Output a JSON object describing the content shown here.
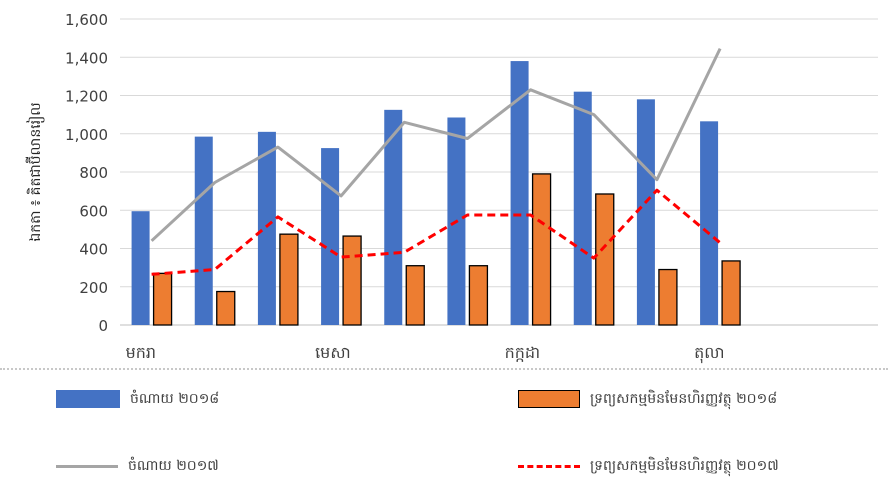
{
  "chart_data": {
    "type": "bar",
    "title": "",
    "xlabel": "",
    "ylabel": "ឯកតា ៖ គិតជាប៊ីលានរៀល",
    "ylim": [
      0,
      1600
    ],
    "y_ticks": [
      "0",
      "200",
      "400",
      "600",
      "800",
      "1,000",
      "1,200",
      "1,400",
      "1,600"
    ],
    "num_categories": 12,
    "x_tick_labels": [
      {
        "index": 0,
        "label": "មករា"
      },
      {
        "index": 3,
        "label": "មេសា"
      },
      {
        "index": 6,
        "label": "កក្កដា"
      },
      {
        "index": 9,
        "label": "តុលា"
      }
    ],
    "grid": true,
    "series": [
      {
        "name": "ចំណាយ ២០១៨",
        "kind": "bar",
        "color": "#4472c4",
        "values": [
          595,
          985,
          1010,
          925,
          1125,
          1085,
          1380,
          1220,
          1180,
          1065
        ]
      },
      {
        "name": "ទ្រព្យសកម្មមិនមែនហិរញ្ញវត្ថុ ២០១៨",
        "kind": "bar",
        "color": "#ed7d31",
        "values": [
          270,
          175,
          475,
          465,
          310,
          310,
          790,
          685,
          290,
          335
        ]
      },
      {
        "name": "ចំណាយ ២០១៧",
        "kind": "line",
        "color": "#a5a5a5",
        "values": [
          440,
          745,
          930,
          675,
          1060,
          975,
          1230,
          1100,
          760,
          1445
        ]
      },
      {
        "name": "ទ្រព្យសកម្មមិនមែនហិរញ្ញវត្ថុ ២០១៧",
        "kind": "line-dashed",
        "color": "#ff0000",
        "values": [
          265,
          290,
          565,
          355,
          380,
          575,
          575,
          350,
          705,
          430
        ]
      }
    ],
    "legend_position": "bottom"
  }
}
